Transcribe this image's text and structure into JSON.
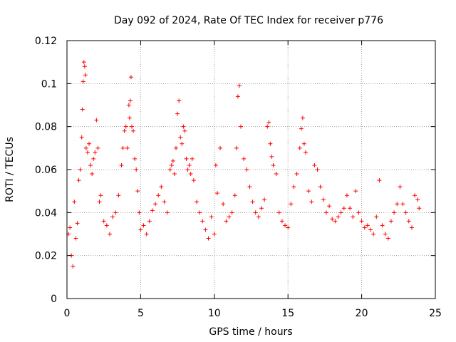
{
  "chart_data": {
    "type": "scatter",
    "title": "Day 092 of 2024, Rate Of TEC Index for receiver p776",
    "xlabel": "GPS time / hours",
    "ylabel": "ROTI / TECUs",
    "xlim": [
      0,
      25
    ],
    "ylim": [
      0,
      0.12
    ],
    "x_ticks": [
      0,
      5,
      10,
      15,
      20,
      25
    ],
    "y_ticks": [
      0,
      0.02,
      0.04,
      0.06,
      0.08,
      0.1,
      0.12
    ],
    "x_tick_labels": [
      "0",
      "5",
      "10",
      "15",
      "20",
      "25"
    ],
    "y_tick_labels": [
      "0",
      "0.02",
      "0.04",
      "0.06",
      "0.08",
      "0.1",
      "0.12"
    ],
    "grid": true,
    "marker": "+",
    "color": "#ff0000",
    "series": [
      {
        "name": "ROTI",
        "x": [
          0.1,
          0.2,
          0.3,
          0.4,
          0.5,
          0.6,
          0.7,
          0.8,
          0.9,
          1.0,
          1.05,
          1.1,
          1.15,
          1.2,
          1.25,
          1.3,
          1.4,
          1.5,
          1.6,
          1.7,
          1.8,
          1.9,
          2.0,
          2.1,
          2.2,
          2.3,
          2.5,
          2.7,
          2.9,
          3.1,
          3.3,
          3.5,
          3.7,
          3.8,
          3.9,
          4.0,
          4.1,
          4.2,
          4.25,
          4.3,
          4.35,
          4.4,
          4.5,
          4.6,
          4.7,
          4.8,
          4.9,
          5.0,
          5.2,
          5.4,
          5.6,
          5.8,
          6.0,
          6.2,
          6.4,
          6.6,
          6.8,
          7.0,
          7.1,
          7.2,
          7.3,
          7.4,
          7.5,
          7.6,
          7.7,
          7.8,
          7.9,
          8.0,
          8.1,
          8.2,
          8.3,
          8.4,
          8.5,
          8.6,
          8.8,
          9.0,
          9.2,
          9.4,
          9.6,
          9.8,
          10.0,
          10.1,
          10.2,
          10.4,
          10.6,
          10.8,
          11.0,
          11.2,
          11.4,
          11.5,
          11.6,
          11.7,
          11.8,
          12.0,
          12.2,
          12.4,
          12.6,
          12.8,
          13.0,
          13.2,
          13.4,
          13.6,
          13.7,
          13.8,
          13.9,
          14.0,
          14.2,
          14.4,
          14.6,
          14.8,
          15.0,
          15.2,
          15.4,
          15.6,
          15.8,
          15.9,
          16.0,
          16.1,
          16.2,
          16.4,
          16.6,
          16.8,
          17.0,
          17.2,
          17.4,
          17.6,
          17.8,
          18.0,
          18.2,
          18.4,
          18.6,
          18.8,
          19.0,
          19.2,
          19.4,
          19.6,
          19.8,
          20.0,
          20.2,
          20.4,
          20.6,
          20.8,
          21.0,
          21.2,
          21.4,
          21.6,
          21.8,
          22.0,
          22.2,
          22.4,
          22.6,
          22.8,
          23.0,
          23.2,
          23.4,
          23.6,
          23.8,
          23.9
        ],
        "y": [
          0.03,
          0.033,
          0.02,
          0.015,
          0.045,
          0.028,
          0.035,
          0.055,
          0.06,
          0.075,
          0.088,
          0.101,
          0.11,
          0.108,
          0.104,
          0.07,
          0.068,
          0.072,
          0.062,
          0.058,
          0.065,
          0.068,
          0.083,
          0.07,
          0.045,
          0.048,
          0.036,
          0.034,
          0.03,
          0.038,
          0.04,
          0.048,
          0.062,
          0.07,
          0.078,
          0.08,
          0.07,
          0.09,
          0.084,
          0.092,
          0.103,
          0.08,
          0.078,
          0.065,
          0.06,
          0.05,
          0.04,
          0.032,
          0.034,
          0.03,
          0.036,
          0.041,
          0.044,
          0.048,
          0.052,
          0.045,
          0.04,
          0.06,
          0.062,
          0.064,
          0.058,
          0.07,
          0.086,
          0.092,
          0.075,
          0.072,
          0.08,
          0.078,
          0.065,
          0.06,
          0.062,
          0.058,
          0.065,
          0.055,
          0.045,
          0.04,
          0.036,
          0.032,
          0.028,
          0.038,
          0.03,
          0.062,
          0.049,
          0.07,
          0.044,
          0.036,
          0.038,
          0.04,
          0.048,
          0.07,
          0.094,
          0.099,
          0.08,
          0.065,
          0.06,
          0.052,
          0.045,
          0.04,
          0.038,
          0.042,
          0.046,
          0.08,
          0.082,
          0.072,
          0.066,
          0.062,
          0.058,
          0.04,
          0.036,
          0.034,
          0.033,
          0.044,
          0.052,
          0.058,
          0.07,
          0.079,
          0.084,
          0.072,
          0.068,
          0.05,
          0.045,
          0.062,
          0.06,
          0.052,
          0.046,
          0.04,
          0.043,
          0.037,
          0.036,
          0.038,
          0.04,
          0.042,
          0.048,
          0.042,
          0.038,
          0.05,
          0.04,
          0.036,
          0.033,
          0.034,
          0.032,
          0.03,
          0.038,
          0.055,
          0.034,
          0.03,
          0.028,
          0.036,
          0.04,
          0.044,
          0.052,
          0.044,
          0.04,
          0.036,
          0.033,
          0.048,
          0.046,
          0.042
        ]
      }
    ]
  }
}
